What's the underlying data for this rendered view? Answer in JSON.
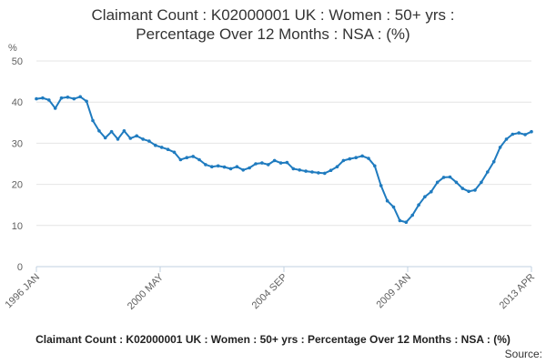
{
  "chart_data": {
    "type": "line",
    "title": "Claimant Count : K02000001 UK : Women : 50+ yrs :",
    "title_line2": "Percentage Over 12 Months : NSA : (%)",
    "ylabel": "%",
    "ylim": [
      0,
      50
    ],
    "yticks": [
      "0",
      "10",
      "20",
      "30",
      "40",
      "50"
    ],
    "xticks": [
      "1996 JAN",
      "2000 MAY",
      "2004 SEP",
      "2009 JAN",
      "2013 APR"
    ],
    "grid": "horizontal",
    "color": "#1f7bbf",
    "series": [
      {
        "values": [
          40.8,
          41.0,
          40.5,
          38.5,
          41.0,
          41.2,
          40.8,
          41.3,
          40.2,
          35.5,
          33.0,
          31.3,
          32.8,
          31.0,
          33.0,
          31.2,
          31.8,
          31.0,
          30.5,
          29.5,
          29.0,
          28.5,
          27.8,
          26.0,
          26.5,
          26.8,
          26.0,
          24.8,
          24.3,
          24.5,
          24.2,
          23.8,
          24.3,
          23.5,
          24.0,
          25.0,
          25.2,
          24.8,
          25.8,
          25.2,
          25.3,
          23.8,
          23.5,
          23.2,
          23.0,
          22.8,
          22.7,
          23.4,
          24.3,
          25.8,
          26.2,
          26.5,
          26.9,
          26.3,
          24.5,
          19.7,
          16.0,
          14.5,
          11.2,
          10.8,
          12.5,
          15.0,
          17.0,
          18.2,
          20.5,
          21.7,
          21.8,
          20.5,
          19.0,
          18.3,
          18.6,
          20.5,
          23.0,
          25.5,
          29.0,
          31.0,
          32.2,
          32.5,
          32.1,
          32.8
        ]
      }
    ]
  },
  "footer": {
    "description": "Claimant Count : K02000001 UK : Women : 50+ yrs : Percentage Over 12 Months : NSA : (%)",
    "source": "Source:"
  }
}
